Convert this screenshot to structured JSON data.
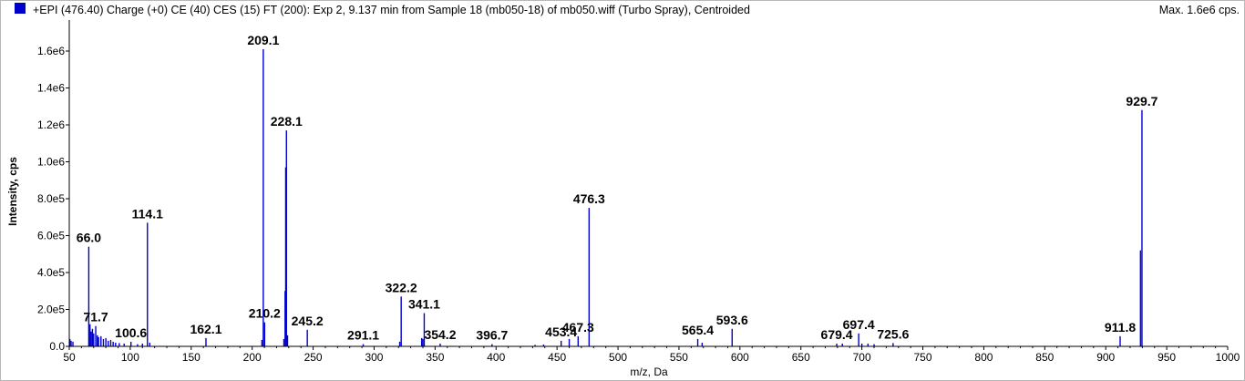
{
  "header": {
    "title": "+EPI (476.40) Charge (+0) CE (40) CES (15) FT (200): Exp 2, 9.137 min from Sample 18 (mb050-18) of mb050.wiff (Turbo Spray), Centroided",
    "max_label": "Max. 1.6e6 cps."
  },
  "colors": {
    "series": "#0000cc",
    "axis": "#000000",
    "frame": "#b8b8b8"
  },
  "chart_data": {
    "type": "bar",
    "xlabel": "m/z, Da",
    "ylabel": "Intensity, cps",
    "xlim": [
      50,
      1000
    ],
    "ylim": [
      0,
      1600000
    ],
    "x_ticks": [
      50,
      100,
      150,
      200,
      250,
      300,
      350,
      400,
      450,
      500,
      550,
      600,
      650,
      700,
      750,
      800,
      850,
      900,
      950,
      1000
    ],
    "y_ticks": [
      {
        "value": 0,
        "label": "0.0"
      },
      {
        "value": 200000,
        "label": "2.0e5"
      },
      {
        "value": 400000,
        "label": "4.0e5"
      },
      {
        "value": 600000,
        "label": "6.0e5"
      },
      {
        "value": 800000,
        "label": "8.0e5"
      },
      {
        "value": 1000000,
        "label": "1.0e6"
      },
      {
        "value": 1200000,
        "label": "1.2e6"
      },
      {
        "value": 1400000,
        "label": "1.4e6"
      },
      {
        "value": 1600000,
        "label": "1.6e6"
      }
    ],
    "peaks": [
      {
        "x": 50.5,
        "y": 40000
      },
      {
        "x": 51.5,
        "y": 30000
      },
      {
        "x": 53,
        "y": 25000
      },
      {
        "x": 66.0,
        "y": 540000
      },
      {
        "x": 67,
        "y": 120000
      },
      {
        "x": 68,
        "y": 80000
      },
      {
        "x": 69,
        "y": 95000
      },
      {
        "x": 70,
        "y": 70000
      },
      {
        "x": 71.7,
        "y": 110000
      },
      {
        "x": 73,
        "y": 60000
      },
      {
        "x": 74,
        "y": 50000
      },
      {
        "x": 76,
        "y": 55000
      },
      {
        "x": 78,
        "y": 40000
      },
      {
        "x": 80,
        "y": 45000
      },
      {
        "x": 82,
        "y": 30000
      },
      {
        "x": 84,
        "y": 35000
      },
      {
        "x": 86,
        "y": 25000
      },
      {
        "x": 88,
        "y": 20000
      },
      {
        "x": 91,
        "y": 18000
      },
      {
        "x": 95,
        "y": 15000
      },
      {
        "x": 100.6,
        "y": 25000
      },
      {
        "x": 106,
        "y": 12000
      },
      {
        "x": 110,
        "y": 15000
      },
      {
        "x": 114.1,
        "y": 670000
      },
      {
        "x": 116,
        "y": 20000
      },
      {
        "x": 162.1,
        "y": 45000
      },
      {
        "x": 208,
        "y": 35000
      },
      {
        "x": 209.1,
        "y": 1610000
      },
      {
        "x": 210.2,
        "y": 130000
      },
      {
        "x": 226,
        "y": 40000
      },
      {
        "x": 227,
        "y": 300000
      },
      {
        "x": 227.5,
        "y": 970000
      },
      {
        "x": 228.1,
        "y": 1170000
      },
      {
        "x": 229,
        "y": 60000
      },
      {
        "x": 245.2,
        "y": 90000
      },
      {
        "x": 291.1,
        "y": 12000
      },
      {
        "x": 321,
        "y": 25000
      },
      {
        "x": 322.2,
        "y": 270000
      },
      {
        "x": 339,
        "y": 45000
      },
      {
        "x": 340,
        "y": 40000
      },
      {
        "x": 341.1,
        "y": 180000
      },
      {
        "x": 354.2,
        "y": 15000
      },
      {
        "x": 396.7,
        "y": 12000
      },
      {
        "x": 432,
        "y": 8000
      },
      {
        "x": 439,
        "y": 10000
      },
      {
        "x": 453.4,
        "y": 30000
      },
      {
        "x": 460,
        "y": 40000
      },
      {
        "x": 467.3,
        "y": 55000
      },
      {
        "x": 476.3,
        "y": 750000
      },
      {
        "x": 565.4,
        "y": 40000
      },
      {
        "x": 569,
        "y": 20000
      },
      {
        "x": 593.6,
        "y": 95000
      },
      {
        "x": 679.4,
        "y": 15000
      },
      {
        "x": 684,
        "y": 15000
      },
      {
        "x": 697.4,
        "y": 70000
      },
      {
        "x": 700,
        "y": 15000
      },
      {
        "x": 705,
        "y": 15000
      },
      {
        "x": 710,
        "y": 12000
      },
      {
        "x": 725.6,
        "y": 18000
      },
      {
        "x": 911.8,
        "y": 55000
      },
      {
        "x": 928.5,
        "y": 520000
      },
      {
        "x": 929.7,
        "y": 1280000
      }
    ],
    "labels": [
      {
        "x": 66.0,
        "y": 540000,
        "text": "66.0"
      },
      {
        "x": 71.7,
        "y": 110000,
        "text": "71.7"
      },
      {
        "x": 100.6,
        "y": 25000,
        "text": "100.6"
      },
      {
        "x": 114.1,
        "y": 670000,
        "text": "114.1"
      },
      {
        "x": 162.1,
        "y": 45000,
        "text": "162.1"
      },
      {
        "x": 209.1,
        "y": 1610000,
        "text": "209.1"
      },
      {
        "x": 210.2,
        "y": 130000,
        "text": "210.2"
      },
      {
        "x": 228.1,
        "y": 1170000,
        "text": "228.1"
      },
      {
        "x": 245.2,
        "y": 90000,
        "text": "245.2"
      },
      {
        "x": 291.1,
        "y": 12000,
        "text": "291.1"
      },
      {
        "x": 322.2,
        "y": 270000,
        "text": "322.2"
      },
      {
        "x": 341.1,
        "y": 180000,
        "text": "341.1"
      },
      {
        "x": 354.2,
        "y": 15000,
        "text": "354.2"
      },
      {
        "x": 396.7,
        "y": 12000,
        "text": "396.7"
      },
      {
        "x": 453.4,
        "y": 30000,
        "text": "453.4"
      },
      {
        "x": 467.3,
        "y": 55000,
        "text": "467.3"
      },
      {
        "x": 476.3,
        "y": 750000,
        "text": "476.3"
      },
      {
        "x": 565.4,
        "y": 40000,
        "text": "565.4"
      },
      {
        "x": 593.6,
        "y": 95000,
        "text": "593.6"
      },
      {
        "x": 679.4,
        "y": 15000,
        "text": "679.4"
      },
      {
        "x": 697.4,
        "y": 70000,
        "text": "697.4"
      },
      {
        "x": 725.6,
        "y": 18000,
        "text": "725.6"
      },
      {
        "x": 911.8,
        "y": 55000,
        "text": "911.8"
      },
      {
        "x": 929.7,
        "y": 1280000,
        "text": "929.7"
      }
    ]
  }
}
